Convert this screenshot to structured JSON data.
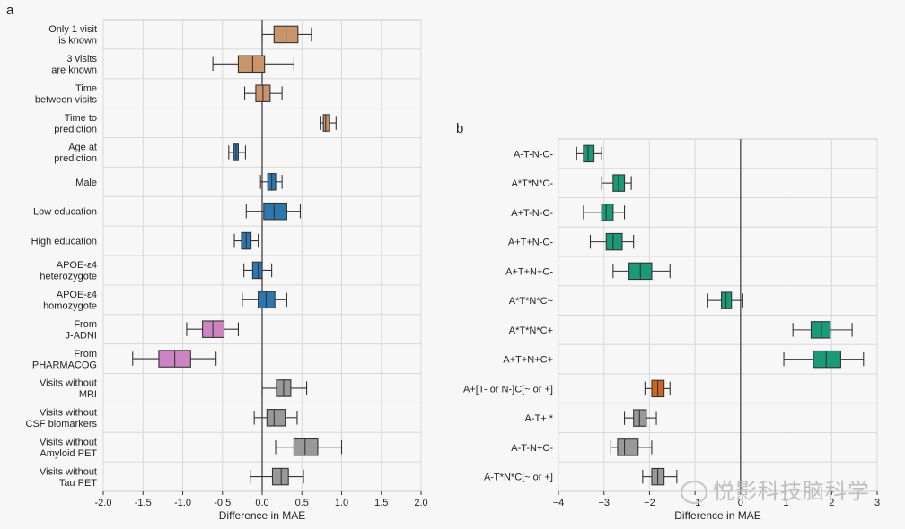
{
  "chart_data": [
    {
      "panel": "a",
      "type": "box",
      "xlabel": "Difference in MAE",
      "xlim": [
        -2.0,
        2.0
      ],
      "xticks": [
        "-2.0",
        "-1.5",
        "-1.0",
        "-0.5",
        "0.0",
        "0.5",
        "1.0",
        "1.5",
        "2.0"
      ],
      "xtick_values": [
        -2.0,
        -1.5,
        -1.0,
        -0.5,
        0.0,
        0.5,
        1.0,
        1.5,
        2.0
      ],
      "grid": true,
      "categories": [
        {
          "label": [
            "Only 1 visit",
            "is known"
          ],
          "color": "#c9946a",
          "wlo": 0.0,
          "q1": 0.15,
          "med": 0.3,
          "q3": 0.45,
          "whi": 0.62
        },
        {
          "label": [
            "3 visits",
            "are known"
          ],
          "color": "#c9946a",
          "wlo": -0.62,
          "q1": -0.3,
          "med": -0.12,
          "q3": 0.03,
          "whi": 0.4
        },
        {
          "label": [
            "Time",
            "between visits"
          ],
          "color": "#c9946a",
          "wlo": -0.22,
          "q1": -0.08,
          "med": 0.01,
          "q3": 0.1,
          "whi": 0.25
        },
        {
          "label": [
            "Time to",
            "prediction"
          ],
          "color": "#c9946a",
          "wlo": 0.73,
          "q1": 0.77,
          "med": 0.8,
          "q3": 0.85,
          "whi": 0.93
        },
        {
          "label": [
            "Age at",
            "prediction"
          ],
          "color": "#2e76ae",
          "wlo": -0.42,
          "q1": -0.36,
          "med": -0.33,
          "q3": -0.3,
          "whi": -0.21
        },
        {
          "label": [
            "Male"
          ],
          "color": "#2e76ae",
          "wlo": -0.02,
          "q1": 0.07,
          "med": 0.12,
          "q3": 0.17,
          "whi": 0.25
        },
        {
          "label": [
            "Low education"
          ],
          "color": "#2e76ae",
          "wlo": -0.2,
          "q1": 0.02,
          "med": 0.15,
          "q3": 0.31,
          "whi": 0.48
        },
        {
          "label": [
            "High education"
          ],
          "color": "#2e76ae",
          "wlo": -0.35,
          "q1": -0.26,
          "med": -0.2,
          "q3": -0.14,
          "whi": -0.05
        },
        {
          "label": [
            "APOE-ε4",
            "heterozygote"
          ],
          "color": "#2e76ae",
          "wlo": -0.23,
          "q1": -0.12,
          "med": -0.05,
          "q3": 0.0,
          "whi": 0.12
        },
        {
          "label": [
            "APOE-ε4",
            "homozygote"
          ],
          "color": "#2e76ae",
          "wlo": -0.25,
          "q1": -0.05,
          "med": 0.05,
          "q3": 0.16,
          "whi": 0.31
        },
        {
          "label": [
            "From",
            "J-ADNI"
          ],
          "color": "#cc84c2",
          "wlo": -0.95,
          "q1": -0.75,
          "med": -0.62,
          "q3": -0.48,
          "whi": -0.3
        },
        {
          "label": [
            "From",
            "PHARMACOG"
          ],
          "color": "#cc84c2",
          "wlo": -1.63,
          "q1": -1.3,
          "med": -1.1,
          "q3": -0.9,
          "whi": -0.58
        },
        {
          "label": [
            "Visits without",
            "MRI"
          ],
          "color": "#999999",
          "wlo": 0.0,
          "q1": 0.18,
          "med": 0.27,
          "q3": 0.36,
          "whi": 0.56
        },
        {
          "label": [
            "Visits without",
            "CSF biomarkers"
          ],
          "color": "#999999",
          "wlo": -0.1,
          "q1": 0.06,
          "med": 0.15,
          "q3": 0.29,
          "whi": 0.44
        },
        {
          "label": [
            "Visits without",
            "Amyloid PET"
          ],
          "color": "#999999",
          "wlo": 0.17,
          "q1": 0.4,
          "med": 0.54,
          "q3": 0.7,
          "whi": 1.0
        },
        {
          "label": [
            "Visits without",
            "Tau PET"
          ],
          "color": "#999999",
          "wlo": -0.15,
          "q1": 0.13,
          "med": 0.24,
          "q3": 0.33,
          "whi": 0.52
        }
      ]
    },
    {
      "panel": "b",
      "type": "box",
      "xlabel": "Difference in MAE",
      "xlim": [
        -4,
        3
      ],
      "xticks": [
        "−4",
        "−3",
        "−2",
        "−1",
        "0",
        "1",
        "2",
        "3"
      ],
      "xtick_values": [
        -4,
        -3,
        -2,
        -1,
        0,
        1,
        2,
        3
      ],
      "grid": true,
      "categories": [
        {
          "label": [
            "A-T-N-C-"
          ],
          "color": "#1a9a77",
          "wlo": -3.6,
          "q1": -3.45,
          "med": -3.35,
          "q3": -3.22,
          "whi": -3.05
        },
        {
          "label": [
            "A*T*N*C-"
          ],
          "color": "#1a9a77",
          "wlo": -3.05,
          "q1": -2.8,
          "med": -2.68,
          "q3": -2.55,
          "whi": -2.4
        },
        {
          "label": [
            "A+T-N-C-"
          ],
          "color": "#1a9a77",
          "wlo": -3.45,
          "q1": -3.05,
          "med": -2.95,
          "q3": -2.8,
          "whi": -2.55
        },
        {
          "label": [
            "A+T+N-C-"
          ],
          "color": "#1a9a77",
          "wlo": -3.3,
          "q1": -2.95,
          "med": -2.8,
          "q3": -2.6,
          "whi": -2.35
        },
        {
          "label": [
            "A+T+N+C-"
          ],
          "color": "#1a9a77",
          "wlo": -2.8,
          "q1": -2.45,
          "med": -2.2,
          "q3": -1.95,
          "whi": -1.55
        },
        {
          "label": [
            "A*T*N*C~"
          ],
          "color": "#1a9a77",
          "wlo": -0.72,
          "q1": -0.42,
          "med": -0.32,
          "q3": -0.2,
          "whi": 0.05
        },
        {
          "label": [
            "A*T*N*C+"
          ],
          "color": "#1a9a77",
          "wlo": 1.15,
          "q1": 1.55,
          "med": 1.78,
          "q3": 1.97,
          "whi": 2.45
        },
        {
          "label": [
            "A+T+N+C+"
          ],
          "color": "#1a9a77",
          "wlo": 0.95,
          "q1": 1.6,
          "med": 1.88,
          "q3": 2.2,
          "whi": 2.7
        },
        {
          "label": [
            "A+[T- or N-]C[~ or +]"
          ],
          "color": "#d2651e",
          "wlo": -2.1,
          "q1": -1.95,
          "med": -1.82,
          "q3": -1.68,
          "whi": -1.55
        },
        {
          "label": [
            "A-T+ *"
          ],
          "color": "#999999",
          "wlo": -2.55,
          "q1": -2.35,
          "med": -2.22,
          "q3": -2.07,
          "whi": -1.85
        },
        {
          "label": [
            "A-T-N+C-"
          ],
          "color": "#999999",
          "wlo": -2.85,
          "q1": -2.7,
          "med": -2.55,
          "q3": -2.25,
          "whi": -1.95
        },
        {
          "label": [
            "A-T*N*C[~ or +]"
          ],
          "color": "#999999",
          "wlo": -2.15,
          "q1": -1.95,
          "med": -1.82,
          "q3": -1.68,
          "whi": -1.4
        }
      ]
    }
  ],
  "panel_labels": {
    "a": "a",
    "b": "b"
  },
  "watermark": {
    "text": "悦影科技脑科学",
    "icon": "wechat-icon"
  }
}
